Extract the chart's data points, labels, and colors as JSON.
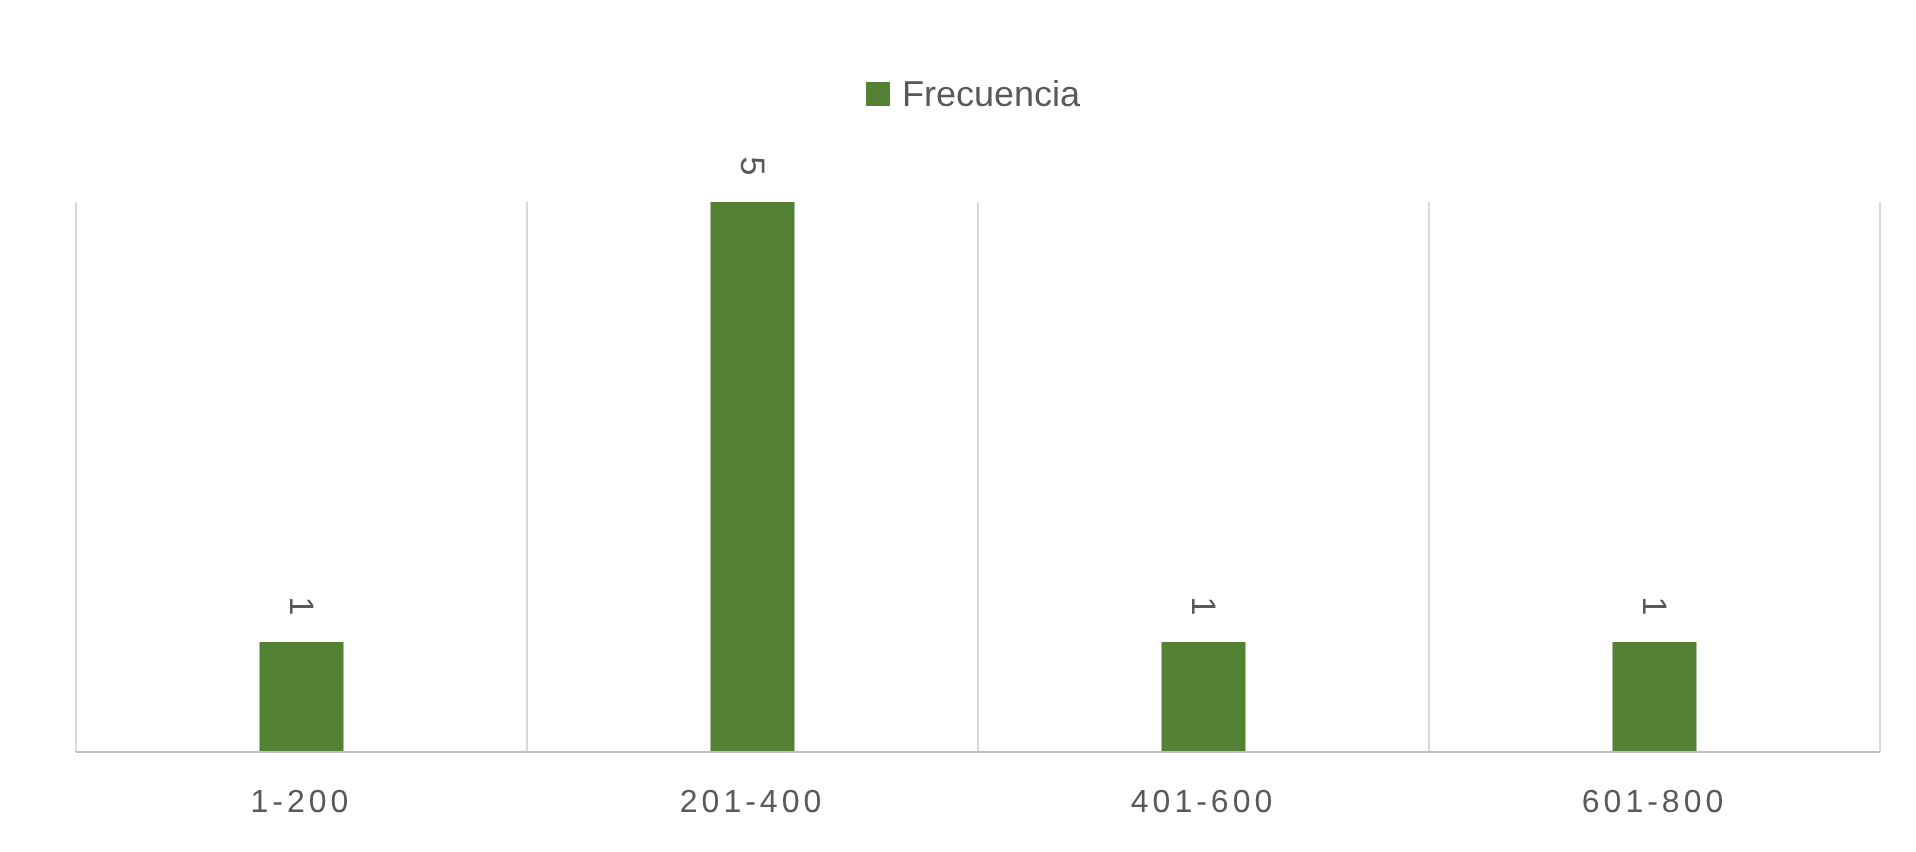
{
  "chart_data": {
    "type": "bar",
    "categories": [
      "1-200",
      "201-400",
      "401-600",
      "601-800"
    ],
    "series": [
      {
        "name": "Frecuencia",
        "color": "#548235",
        "values": [
          1,
          5,
          1,
          1
        ]
      }
    ],
    "data_labels": true,
    "grid": "x",
    "legend": "top"
  }
}
